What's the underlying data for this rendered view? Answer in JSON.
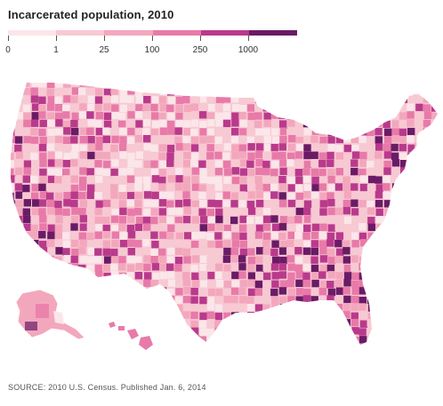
{
  "title": "Incarcerated population, 2010",
  "legend": {
    "labels": [
      "0",
      "1",
      "25",
      "100",
      "250",
      "1000"
    ],
    "colors": [
      "#fbe6ea",
      "#f7c9d3",
      "#f3a7bd",
      "#e87aa9",
      "#b93a8c",
      "#6a1b66"
    ]
  },
  "map_regions": [
    "contiguous-us",
    "alaska",
    "hawaii"
  ],
  "source": "SOURCE: 2010 U.S. Census. Published Jan. 6, 2014"
}
